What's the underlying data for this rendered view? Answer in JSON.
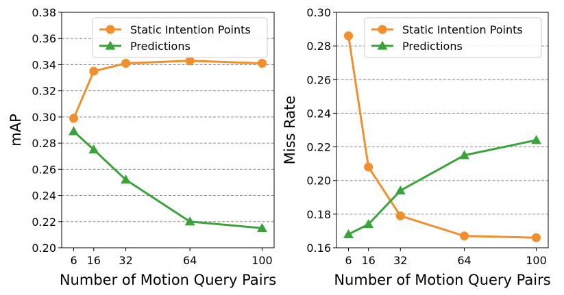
{
  "chart_data": [
    {
      "type": "line",
      "x": [
        6,
        16,
        32,
        64,
        100
      ],
      "xticks": [
        "6",
        "16",
        "32",
        "64",
        "100"
      ],
      "xlabel": "Number of Motion Query Pairs",
      "ylabel": "mAP",
      "ylim": [
        0.2,
        0.38
      ],
      "yticks": [
        "0.20",
        "0.22",
        "0.24",
        "0.26",
        "0.28",
        "0.30",
        "0.32",
        "0.34",
        "0.36",
        "0.38"
      ],
      "grid": "horizontal dashed",
      "legend_position": "top-right",
      "series": [
        {
          "name": "Static Intention Points",
          "color": "#f28e2b",
          "marker": "circle",
          "values": [
            0.299,
            0.335,
            0.341,
            0.343,
            0.341
          ]
        },
        {
          "name": "Predictions",
          "color": "#3aa33a",
          "marker": "triangle",
          "values": [
            0.289,
            0.275,
            0.252,
            0.22,
            0.215
          ]
        }
      ]
    },
    {
      "type": "line",
      "x": [
        6,
        16,
        32,
        64,
        100
      ],
      "xticks": [
        "6",
        "16",
        "32",
        "64",
        "100"
      ],
      "xlabel": "Number of Motion Query Pairs",
      "ylabel": "Miss Rate",
      "ylim": [
        0.16,
        0.3
      ],
      "yticks": [
        "0.16",
        "0.18",
        "0.20",
        "0.22",
        "0.24",
        "0.26",
        "0.28",
        "0.30"
      ],
      "grid": "horizontal dashed",
      "legend_position": "top-right",
      "series": [
        {
          "name": "Static Intention Points",
          "color": "#f28e2b",
          "marker": "circle",
          "values": [
            0.286,
            0.208,
            0.179,
            0.167,
            0.166
          ]
        },
        {
          "name": "Predictions",
          "color": "#3aa33a",
          "marker": "triangle",
          "values": [
            0.168,
            0.174,
            0.194,
            0.215,
            0.224
          ]
        }
      ]
    }
  ]
}
